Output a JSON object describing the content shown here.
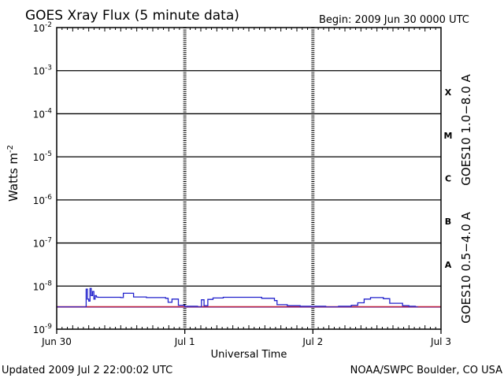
{
  "header": {
    "title": "GOES Xray Flux (5 minute data)",
    "begin": "Begin:  2009 Jun 30 0000 UTC"
  },
  "footer": {
    "updated": "Updated 2009 Jul  2 22:00:02 UTC",
    "credit": "NOAA/SWPC Boulder, CO USA"
  },
  "chart_data": {
    "type": "line",
    "title": "GOES Xray Flux (5 minute data)",
    "xlabel": "Universal Time",
    "ylabel": "Watts m",
    "ylabel_exponent": "-2",
    "yscale": "log",
    "ylim": [
      1e-09,
      0.01
    ],
    "xlim_days": [
      0,
      3
    ],
    "x_tick_labels": [
      "Jun 30",
      "Jul 1",
      "Jul 2",
      "Jul 3"
    ],
    "y_tick_labels": [
      {
        "base": "10",
        "exp": "-2"
      },
      {
        "base": "10",
        "exp": "-3"
      },
      {
        "base": "10",
        "exp": "-4"
      },
      {
        "base": "10",
        "exp": "-5"
      },
      {
        "base": "10",
        "exp": "-6"
      },
      {
        "base": "10",
        "exp": "-7"
      },
      {
        "base": "10",
        "exp": "-8"
      },
      {
        "base": "10",
        "exp": "-9"
      }
    ],
    "flare_classes": [
      {
        "label": "X",
        "value": 0.0001
      },
      {
        "label": "M",
        "value": 1e-05
      },
      {
        "label": "C",
        "value": 1e-06
      },
      {
        "label": "B",
        "value": 1e-07
      },
      {
        "label": "A",
        "value": 1e-08
      }
    ],
    "grid": true,
    "series": [
      {
        "name": "GOES10 1.0−8.0 A",
        "color": "#dd2222",
        "x": [
          0,
          3
        ],
        "y": [
          3.3e-09,
          3.3e-09
        ]
      },
      {
        "name": "GOES10 0.5−4.0 A",
        "color": "#2222cc",
        "x": [
          0.0,
          0.22,
          0.23,
          0.24,
          0.25,
          0.26,
          0.27,
          0.28,
          0.29,
          0.3,
          0.31,
          0.32,
          0.35,
          0.5,
          0.52,
          0.6,
          0.7,
          0.85,
          0.87,
          0.9,
          0.95,
          1.0,
          1.05,
          1.1,
          1.13,
          1.15,
          1.18,
          1.22,
          1.3,
          1.5,
          1.6,
          1.7,
          1.72,
          1.8,
          1.9,
          2.0,
          2.1,
          2.2,
          2.3,
          2.35,
          2.4,
          2.45,
          2.55,
          2.6,
          2.7,
          2.75,
          2.8,
          2.82
        ],
        "y": [
          3.3e-09,
          3.3e-09,
          8.5e-09,
          5e-09,
          4.5e-09,
          8.8e-09,
          6e-09,
          7.5e-09,
          5e-09,
          6e-09,
          5.6e-09,
          5.5e-09,
          5.5e-09,
          5.4e-09,
          6.8e-09,
          5.6e-09,
          5.4e-09,
          5.2e-09,
          4.2e-09,
          5e-09,
          3.6e-09,
          3.4e-09,
          3.4e-09,
          3.3e-09,
          4.8e-09,
          3.5e-09,
          4.9e-09,
          5.3e-09,
          5.5e-09,
          5.5e-09,
          5.2e-09,
          4.6e-09,
          3.7e-09,
          3.5e-09,
          3.4e-09,
          3.4e-09,
          3.3e-09,
          3.4e-09,
          3.6e-09,
          4.1e-09,
          5e-09,
          5.4e-09,
          5.1e-09,
          4e-09,
          3.5e-09,
          3.4e-09,
          3.3e-09,
          3.3e-09
        ]
      }
    ]
  }
}
